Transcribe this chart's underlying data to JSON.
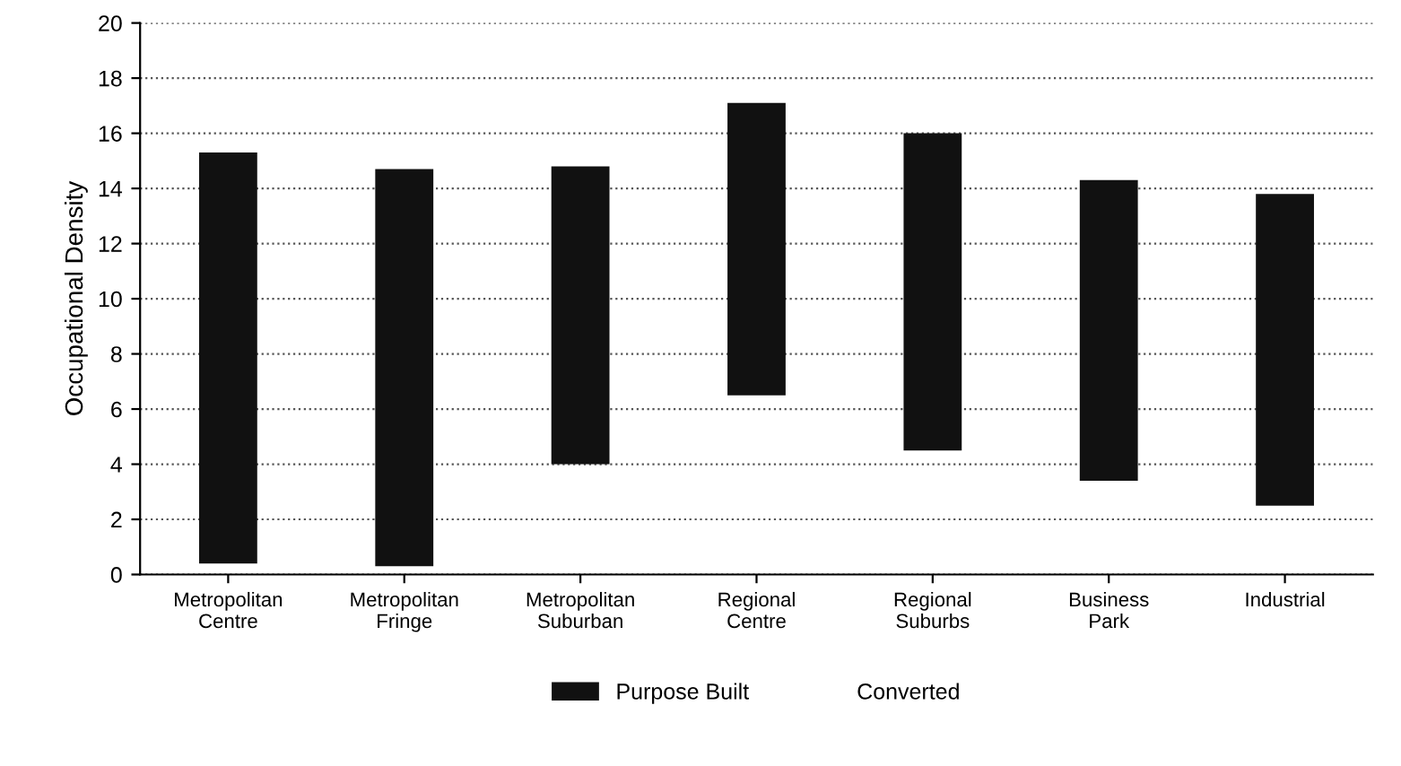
{
  "chart_data": {
    "type": "bar",
    "ylabel": "Occupational Density",
    "categories": [
      "Metropolitan Centre",
      "Metropolitan Fringe",
      "Metropolitan Suburban",
      "Regional Centre",
      "Regional Suburbs",
      "Business Park",
      "Industrial"
    ],
    "series": [
      {
        "name": "Purpose Built",
        "color": "#111111",
        "base": [
          0.4,
          0.3,
          4.0,
          6.5,
          4.5,
          3.4,
          2.5
        ],
        "values": [
          14.9,
          14.4,
          10.8,
          10.6,
          11.5,
          10.9,
          11.3
        ]
      },
      {
        "name": "Converted",
        "values": [
          null,
          null,
          null,
          null,
          null,
          null,
          null
        ]
      }
    ],
    "ylim": [
      0,
      20
    ],
    "yticks": [
      0,
      2,
      4,
      6,
      8,
      10,
      12,
      14,
      16,
      18,
      20
    ],
    "grid": "y",
    "legend": "bottom"
  }
}
